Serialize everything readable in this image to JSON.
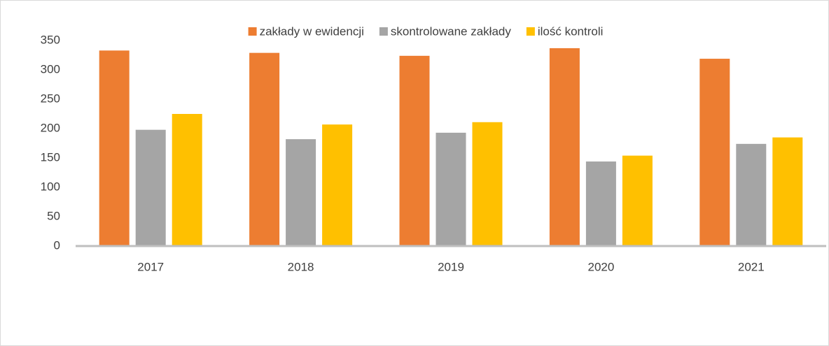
{
  "chart_data": {
    "type": "bar",
    "categories": [
      "2017",
      "2018",
      "2019",
      "2020",
      "2021"
    ],
    "series": [
      {
        "name": "zakłady w ewidencji",
        "color": "#ed7d31",
        "values": [
          333,
          329,
          324,
          337,
          319
        ]
      },
      {
        "name": "skontrolowane zakłady",
        "color": "#a5a5a5",
        "values": [
          198,
          182,
          193,
          144,
          174
        ]
      },
      {
        "name": "ilość kontroli",
        "color": "#ffc000",
        "values": [
          225,
          207,
          211,
          154,
          185
        ]
      }
    ],
    "ylim": [
      0,
      350
    ],
    "yticks": [
      0,
      50,
      100,
      150,
      200,
      250,
      300,
      350
    ],
    "grid": false,
    "legend": "top"
  }
}
